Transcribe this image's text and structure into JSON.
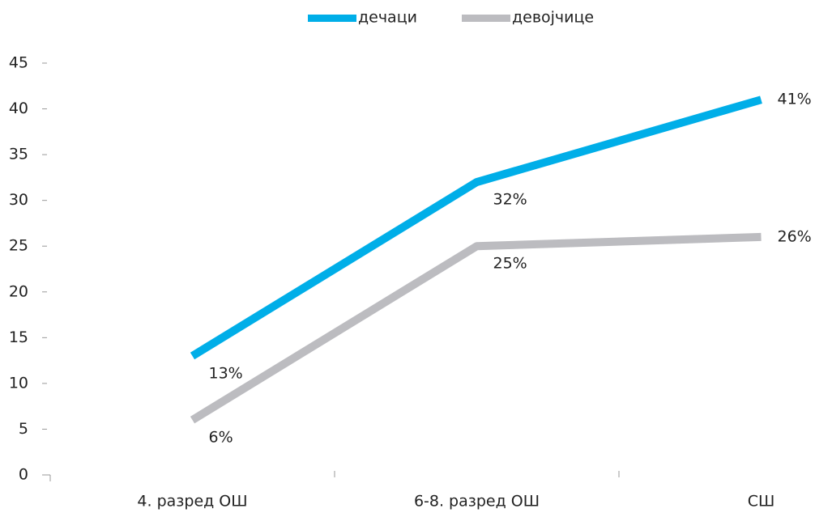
{
  "chart_data": {
    "type": "line",
    "categories": [
      "4. разред ОШ",
      "6-8. разред ОШ",
      "СШ"
    ],
    "series": [
      {
        "name": "дечаци",
        "color": "#00aee8",
        "values": [
          13,
          32,
          41
        ],
        "value_labels": [
          "13%",
          "32%",
          "41%"
        ]
      },
      {
        "name": "девојчице",
        "color": "#bcbcc0",
        "values": [
          6,
          25,
          26
        ],
        "value_labels": [
          "6%",
          "25%",
          "26%"
        ]
      }
    ],
    "ylim": [
      0,
      45
    ],
    "yticks": [
      0,
      5,
      10,
      15,
      20,
      25,
      30,
      35,
      40,
      45
    ],
    "legend": "top"
  }
}
